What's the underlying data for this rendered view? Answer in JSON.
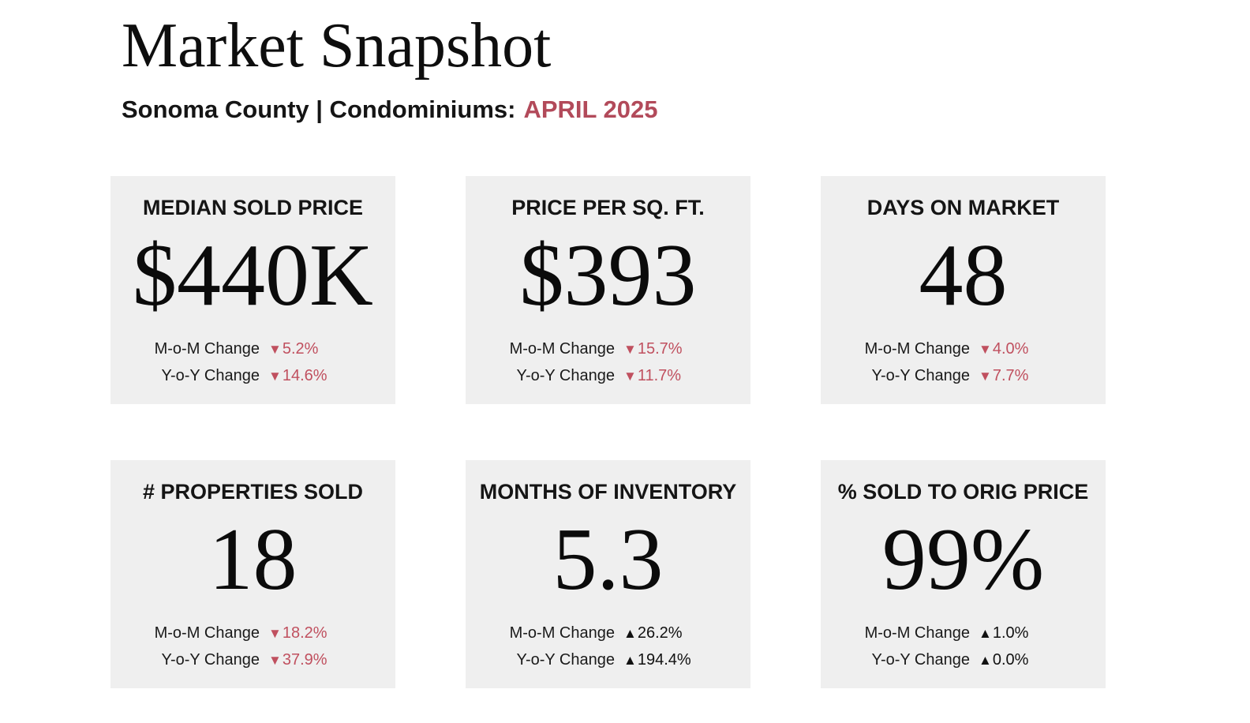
{
  "header": {
    "title": "Market Snapshot",
    "subtitle": "Sonoma County | Condominiums:",
    "period": "APRIL 2025"
  },
  "colors": {
    "accent": "#b24a5a",
    "down": "#c0505f",
    "up": "#111111",
    "card_bg": "#efefef"
  },
  "cards": [
    {
      "label": "MEDIAN SOLD PRICE",
      "value": "$440K",
      "mom_label": "M-o-M Change",
      "mom_arrow": "▼",
      "mom_value": "5.2%",
      "mom_direction": "down",
      "yoy_label": "Y-o-Y Change",
      "yoy_arrow": "▼",
      "yoy_value": "14.6%",
      "yoy_direction": "down"
    },
    {
      "label": "PRICE PER SQ. FT.",
      "value": "$393",
      "mom_label": "M-o-M Change",
      "mom_arrow": "▼",
      "mom_value": "15.7%",
      "mom_direction": "down",
      "yoy_label": "Y-o-Y Change",
      "yoy_arrow": "▼",
      "yoy_value": "11.7%",
      "yoy_direction": "down"
    },
    {
      "label": "DAYS ON MARKET",
      "value": "48",
      "mom_label": "M-o-M Change",
      "mom_arrow": "▼",
      "mom_value": "4.0%",
      "mom_direction": "down",
      "yoy_label": "Y-o-Y Change",
      "yoy_arrow": "▼",
      "yoy_value": "7.7%",
      "yoy_direction": "down"
    },
    {
      "label": "# PROPERTIES SOLD",
      "value": "18",
      "mom_label": "M-o-M Change",
      "mom_arrow": "▼",
      "mom_value": "18.2%",
      "mom_direction": "down",
      "yoy_label": "Y-o-Y Change",
      "yoy_arrow": "▼",
      "yoy_value": "37.9%",
      "yoy_direction": "down"
    },
    {
      "label": "MONTHS OF INVENTORY",
      "value": "5.3",
      "mom_label": "M-o-M Change",
      "mom_arrow": "▲",
      "mom_value": "26.2%",
      "mom_direction": "up",
      "yoy_label": "Y-o-Y Change",
      "yoy_arrow": "▲",
      "yoy_value": "194.4%",
      "yoy_direction": "up"
    },
    {
      "label": "% SOLD TO ORIG PRICE",
      "value": "99%",
      "mom_label": "M-o-M Change",
      "mom_arrow": "▲",
      "mom_value": "1.0%",
      "mom_direction": "up",
      "yoy_label": "Y-o-Y Change",
      "yoy_arrow": "▲",
      "yoy_value": "0.0%",
      "yoy_direction": "up"
    }
  ]
}
